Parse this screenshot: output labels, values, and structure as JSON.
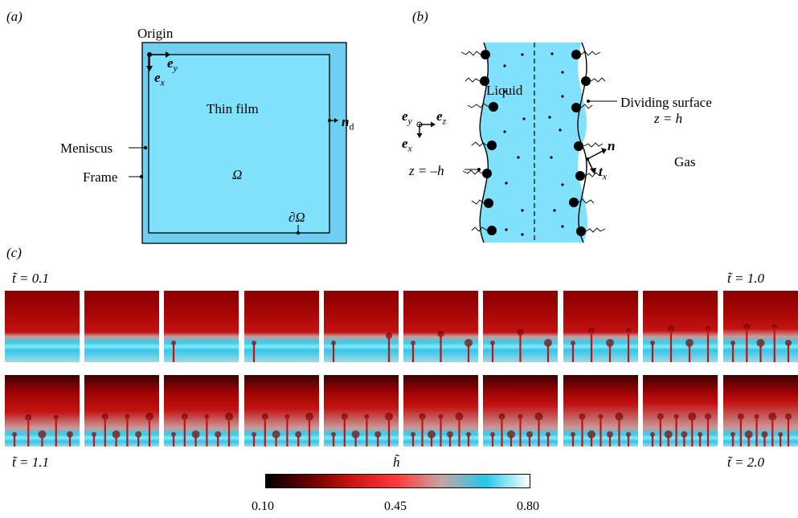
{
  "panel_a": {
    "tag": "(a)",
    "origin": "Origin",
    "ey": "e",
    "ey_sub": "y",
    "ex": "e",
    "ex_sub": "x",
    "film": "Thin film",
    "nd": "n",
    "nd_sub": "d",
    "meniscus": "Meniscus",
    "frame": "Frame",
    "omega": "Ω",
    "boundary": "∂Ω",
    "colors": {
      "frame_fill": "#6fcff0",
      "film_fill": "#7fe1fb",
      "stroke": "#000000"
    }
  },
  "panel_b": {
    "tag": "(b)",
    "liquid": "Liquid",
    "dividing": "Dividing surface",
    "z_h": "z = h",
    "z_minus_h": "z = –h",
    "n": "n",
    "tx": "t",
    "tx_sub": "x",
    "gas": "Gas",
    "ey": "e",
    "ey_sub": "y",
    "ez": "e",
    "ez_sub": "z",
    "ex": "e",
    "ex_sub": "x"
  },
  "panel_c": {
    "tag": "(c)",
    "t_top_left": "t̃ = 0.1",
    "t_top_right": "t̃ = 1.0",
    "t_bottom_left": "t̃ = 1.1",
    "t_bottom_right": "t̃ = 2.0",
    "row1_progress": [
      0.0,
      0.1,
      0.2,
      0.3,
      0.4,
      0.5,
      0.6,
      0.7,
      0.8,
      0.9
    ],
    "row2_progress": [
      0.95,
      1.0,
      1.05,
      1.1,
      1.15,
      1.2,
      1.25,
      1.3,
      1.35,
      1.4
    ]
  },
  "colorbar": {
    "label": "h̃",
    "ticks": [
      "0.10",
      "0.45",
      "0.80"
    ],
    "min": 0.1,
    "max": 0.8,
    "stops": [
      "#000000",
      "#6b0000",
      "#d01414",
      "#ff3b3b",
      "#c6a5a5",
      "#22c8ec",
      "#ffffff"
    ]
  }
}
